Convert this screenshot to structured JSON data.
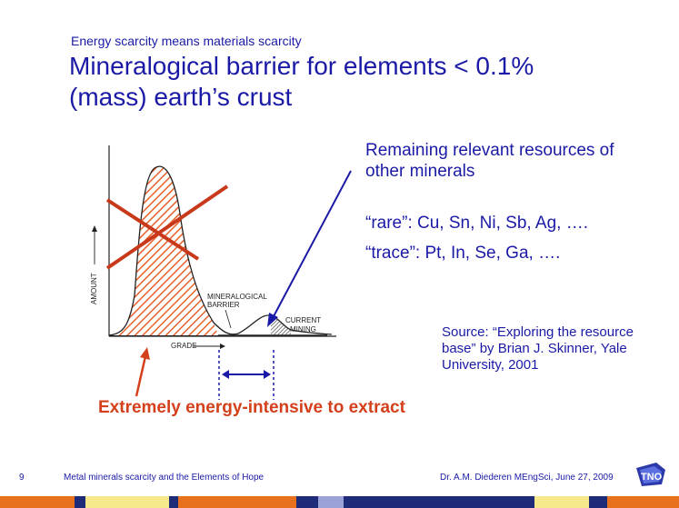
{
  "header": {
    "subtitle": "Energy scarcity means materials scarcity",
    "title_line1": "Mineralogical barrier for elements < 0.1%",
    "title_line2": "(mass) earth’s crust"
  },
  "figure": {
    "axis_y_label": "AMOUNT",
    "axis_x_label": "GRADE",
    "barrier_label_line1": "MINERALOGICAL",
    "barrier_label_line2": "BARRIER",
    "current_label_line1": "CURRENT",
    "current_label_line2": "MINING"
  },
  "notes": {
    "remaining_line1": "Remaining relevant resources of",
    "remaining_line2": "other minerals",
    "rare": "“rare”: Cu, Sn, Ni, Sb, Ag, ….",
    "trace": "“trace”: Pt, In, Se, Ga, ….",
    "source_line1": "Source: “Exploring the resource",
    "source_line2": "base” by Brian J. Skinner, Yale",
    "source_line3": "University, 2001",
    "energy_callout": "Extremely energy-intensive to extract"
  },
  "footer": {
    "page_number": "9",
    "presentation_title": "Metal minerals scarcity and the Elements of Hope",
    "author_date": "Dr. A.M. Diederen MEngSci, June 27, 2009",
    "logo_text": "TNO"
  },
  "colors": {
    "title_blue": "#1a1aa6",
    "accent_orange": "#d3401b",
    "strip_orange": "#e8711e",
    "strip_yellow": "#f5e98c",
    "strip_navy": "#1e2b78",
    "strip_lavender": "#9aa2d8"
  }
}
